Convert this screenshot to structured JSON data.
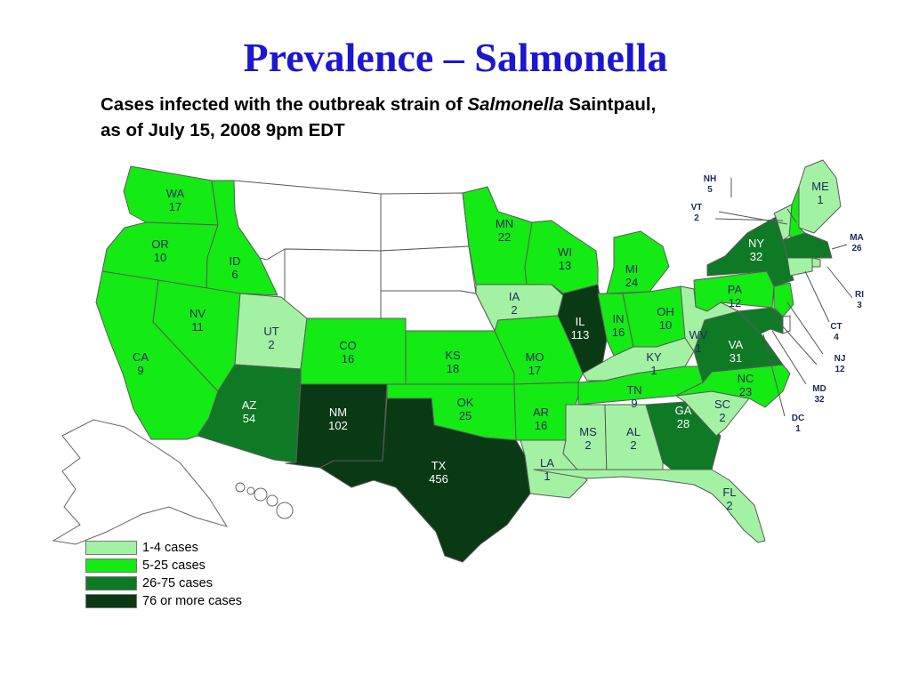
{
  "title": "Prevalence – Salmonella",
  "subtitle": {
    "pre": "Cases infected with the outbreak strain of ",
    "italic": "Salmonella",
    "post": " Saintpaul,",
    "line2": "as of July 15, 2008 9pm EDT"
  },
  "colors": {
    "none": "#ffffff",
    "c1_4": "#a3f2a3",
    "c5_25": "#14ea14",
    "c26_75": "#0f7a25",
    "c76": "#0a3a14",
    "border": "#5a5a5a"
  },
  "legend": [
    {
      "label": "1-4 cases",
      "color": "#a3f2a3"
    },
    {
      "label": "5-25 cases",
      "color": "#14ea14"
    },
    {
      "label": "26-75 cases",
      "color": "#0f7a25"
    },
    {
      "label": "76 or more cases",
      "color": "#0a3a14"
    }
  ],
  "states": [
    {
      "abbr": "WA",
      "cases": "17"
    },
    {
      "abbr": "OR",
      "cases": "10"
    },
    {
      "abbr": "ID",
      "cases": "6"
    },
    {
      "abbr": "CA",
      "cases": "9"
    },
    {
      "abbr": "NV",
      "cases": "11"
    },
    {
      "abbr": "UT",
      "cases": "2"
    },
    {
      "abbr": "AZ",
      "cases": "54"
    },
    {
      "abbr": "CO",
      "cases": "16"
    },
    {
      "abbr": "NM",
      "cases": "102"
    },
    {
      "abbr": "TX",
      "cases": "456"
    },
    {
      "abbr": "OK",
      "cases": "25"
    },
    {
      "abbr": "KS",
      "cases": "18"
    },
    {
      "abbr": "MN",
      "cases": "22"
    },
    {
      "abbr": "IA",
      "cases": "2"
    },
    {
      "abbr": "MO",
      "cases": "17"
    },
    {
      "abbr": "AR",
      "cases": "16"
    },
    {
      "abbr": "LA",
      "cases": "1"
    },
    {
      "abbr": "WI",
      "cases": "13"
    },
    {
      "abbr": "IL",
      "cases": "113"
    },
    {
      "abbr": "MI",
      "cases": "24"
    },
    {
      "abbr": "IN",
      "cases": "16"
    },
    {
      "abbr": "OH",
      "cases": "10"
    },
    {
      "abbr": "KY",
      "cases": "1"
    },
    {
      "abbr": "TN",
      "cases": "9"
    },
    {
      "abbr": "MS",
      "cases": "2"
    },
    {
      "abbr": "AL",
      "cases": "2"
    },
    {
      "abbr": "GA",
      "cases": "28"
    },
    {
      "abbr": "FL",
      "cases": "2"
    },
    {
      "abbr": "SC",
      "cases": "2"
    },
    {
      "abbr": "NC",
      "cases": "23"
    },
    {
      "abbr": "VA",
      "cases": "31"
    },
    {
      "abbr": "WV",
      "cases": "1"
    },
    {
      "abbr": "PA",
      "cases": "12"
    },
    {
      "abbr": "NY",
      "cases": "32"
    },
    {
      "abbr": "ME",
      "cases": "1"
    },
    {
      "abbr": "NH",
      "cases": "5"
    },
    {
      "abbr": "VT",
      "cases": "2"
    },
    {
      "abbr": "MA",
      "cases": "26"
    },
    {
      "abbr": "RI",
      "cases": "3"
    },
    {
      "abbr": "CT",
      "cases": "4"
    },
    {
      "abbr": "NJ",
      "cases": "12"
    },
    {
      "abbr": "MD",
      "cases": "32"
    },
    {
      "abbr": "DC",
      "cases": "1"
    }
  ]
}
